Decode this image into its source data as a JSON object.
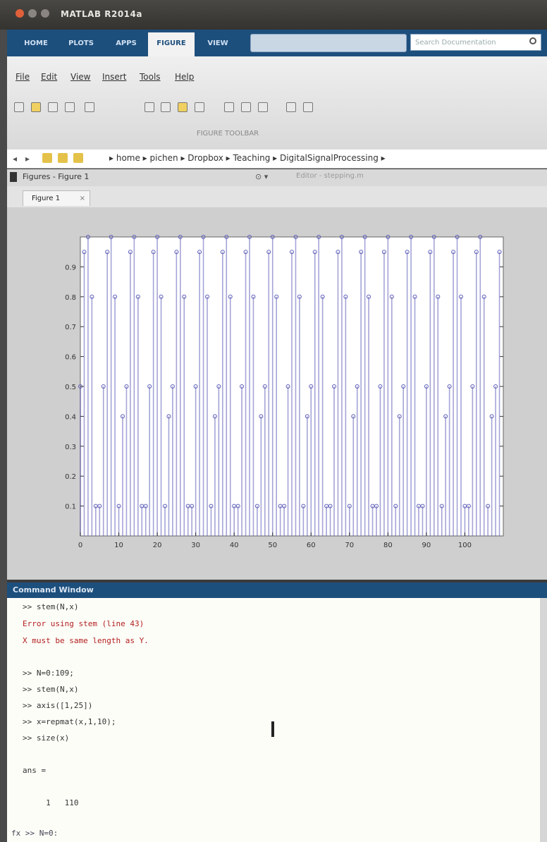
{
  "window": {
    "title": "MATLAB R2014a"
  },
  "ribbon": {
    "tabs": [
      "HOME",
      "PLOTS",
      "APPS",
      "FIGURE",
      "VIEW"
    ],
    "active_tab": "FIGURE",
    "search_placeholder": "Search Documentation"
  },
  "menu": {
    "items": [
      "File",
      "Edit",
      "View",
      "Insert",
      "Tools",
      "Help"
    ],
    "section_label": "FIGURE TOOLBAR"
  },
  "address": {
    "path": "▸ home ▸ pichen ▸ Dropbox ▸ Teaching ▸ DigitalSignalProcessing ▸"
  },
  "figure_panel": {
    "title": "Figures - Figure 1",
    "editor_tab": "Editor - stepping.m",
    "tab_label": "Figure 1"
  },
  "chart_data": {
    "type": "stem",
    "xlim": [
      0,
      110
    ],
    "ylim": [
      0,
      1
    ],
    "xticks": [
      0,
      10,
      20,
      30,
      40,
      50,
      60,
      70,
      80,
      90,
      100
    ],
    "yticks": [
      0.1,
      0.2,
      0.3,
      0.4,
      0.5,
      0.6,
      0.7,
      0.8,
      0.9
    ],
    "ytick_labels": [
      "0.1",
      "0.2",
      "0.3",
      "0.4",
      "0.5",
      "0.6",
      "0.7",
      "0.8",
      "0.9"
    ],
    "pattern": [
      0.5,
      0.95,
      1.0,
      0.8,
      0.1,
      0.1,
      0.5,
      0.95,
      1.0,
      0.8,
      0.1,
      0.4
    ],
    "n_points": 110,
    "color": "#5b5bb8"
  },
  "command_window": {
    "title": "Command Window",
    "lines": [
      {
        "text": ">> stem(N,x)",
        "cls": ""
      },
      {
        "text": "Error using stem (line 43)",
        "cls": "err"
      },
      {
        "text": "X must be same length as Y.",
        "cls": "err"
      },
      {
        "text": "",
        "cls": ""
      },
      {
        "text": ">> N=0:109;",
        "cls": ""
      },
      {
        "text": ">> stem(N,x)",
        "cls": ""
      },
      {
        "text": ">> axis([1,25])",
        "cls": ""
      },
      {
        "text": ">> x=repmat(x,1,10);",
        "cls": ""
      },
      {
        "text": ">> size(x)",
        "cls": ""
      },
      {
        "text": "",
        "cls": ""
      },
      {
        "text": "ans =",
        "cls": ""
      },
      {
        "text": "",
        "cls": ""
      },
      {
        "text": "     1   110",
        "cls": ""
      }
    ],
    "prompt": "fx >> N=0:"
  }
}
